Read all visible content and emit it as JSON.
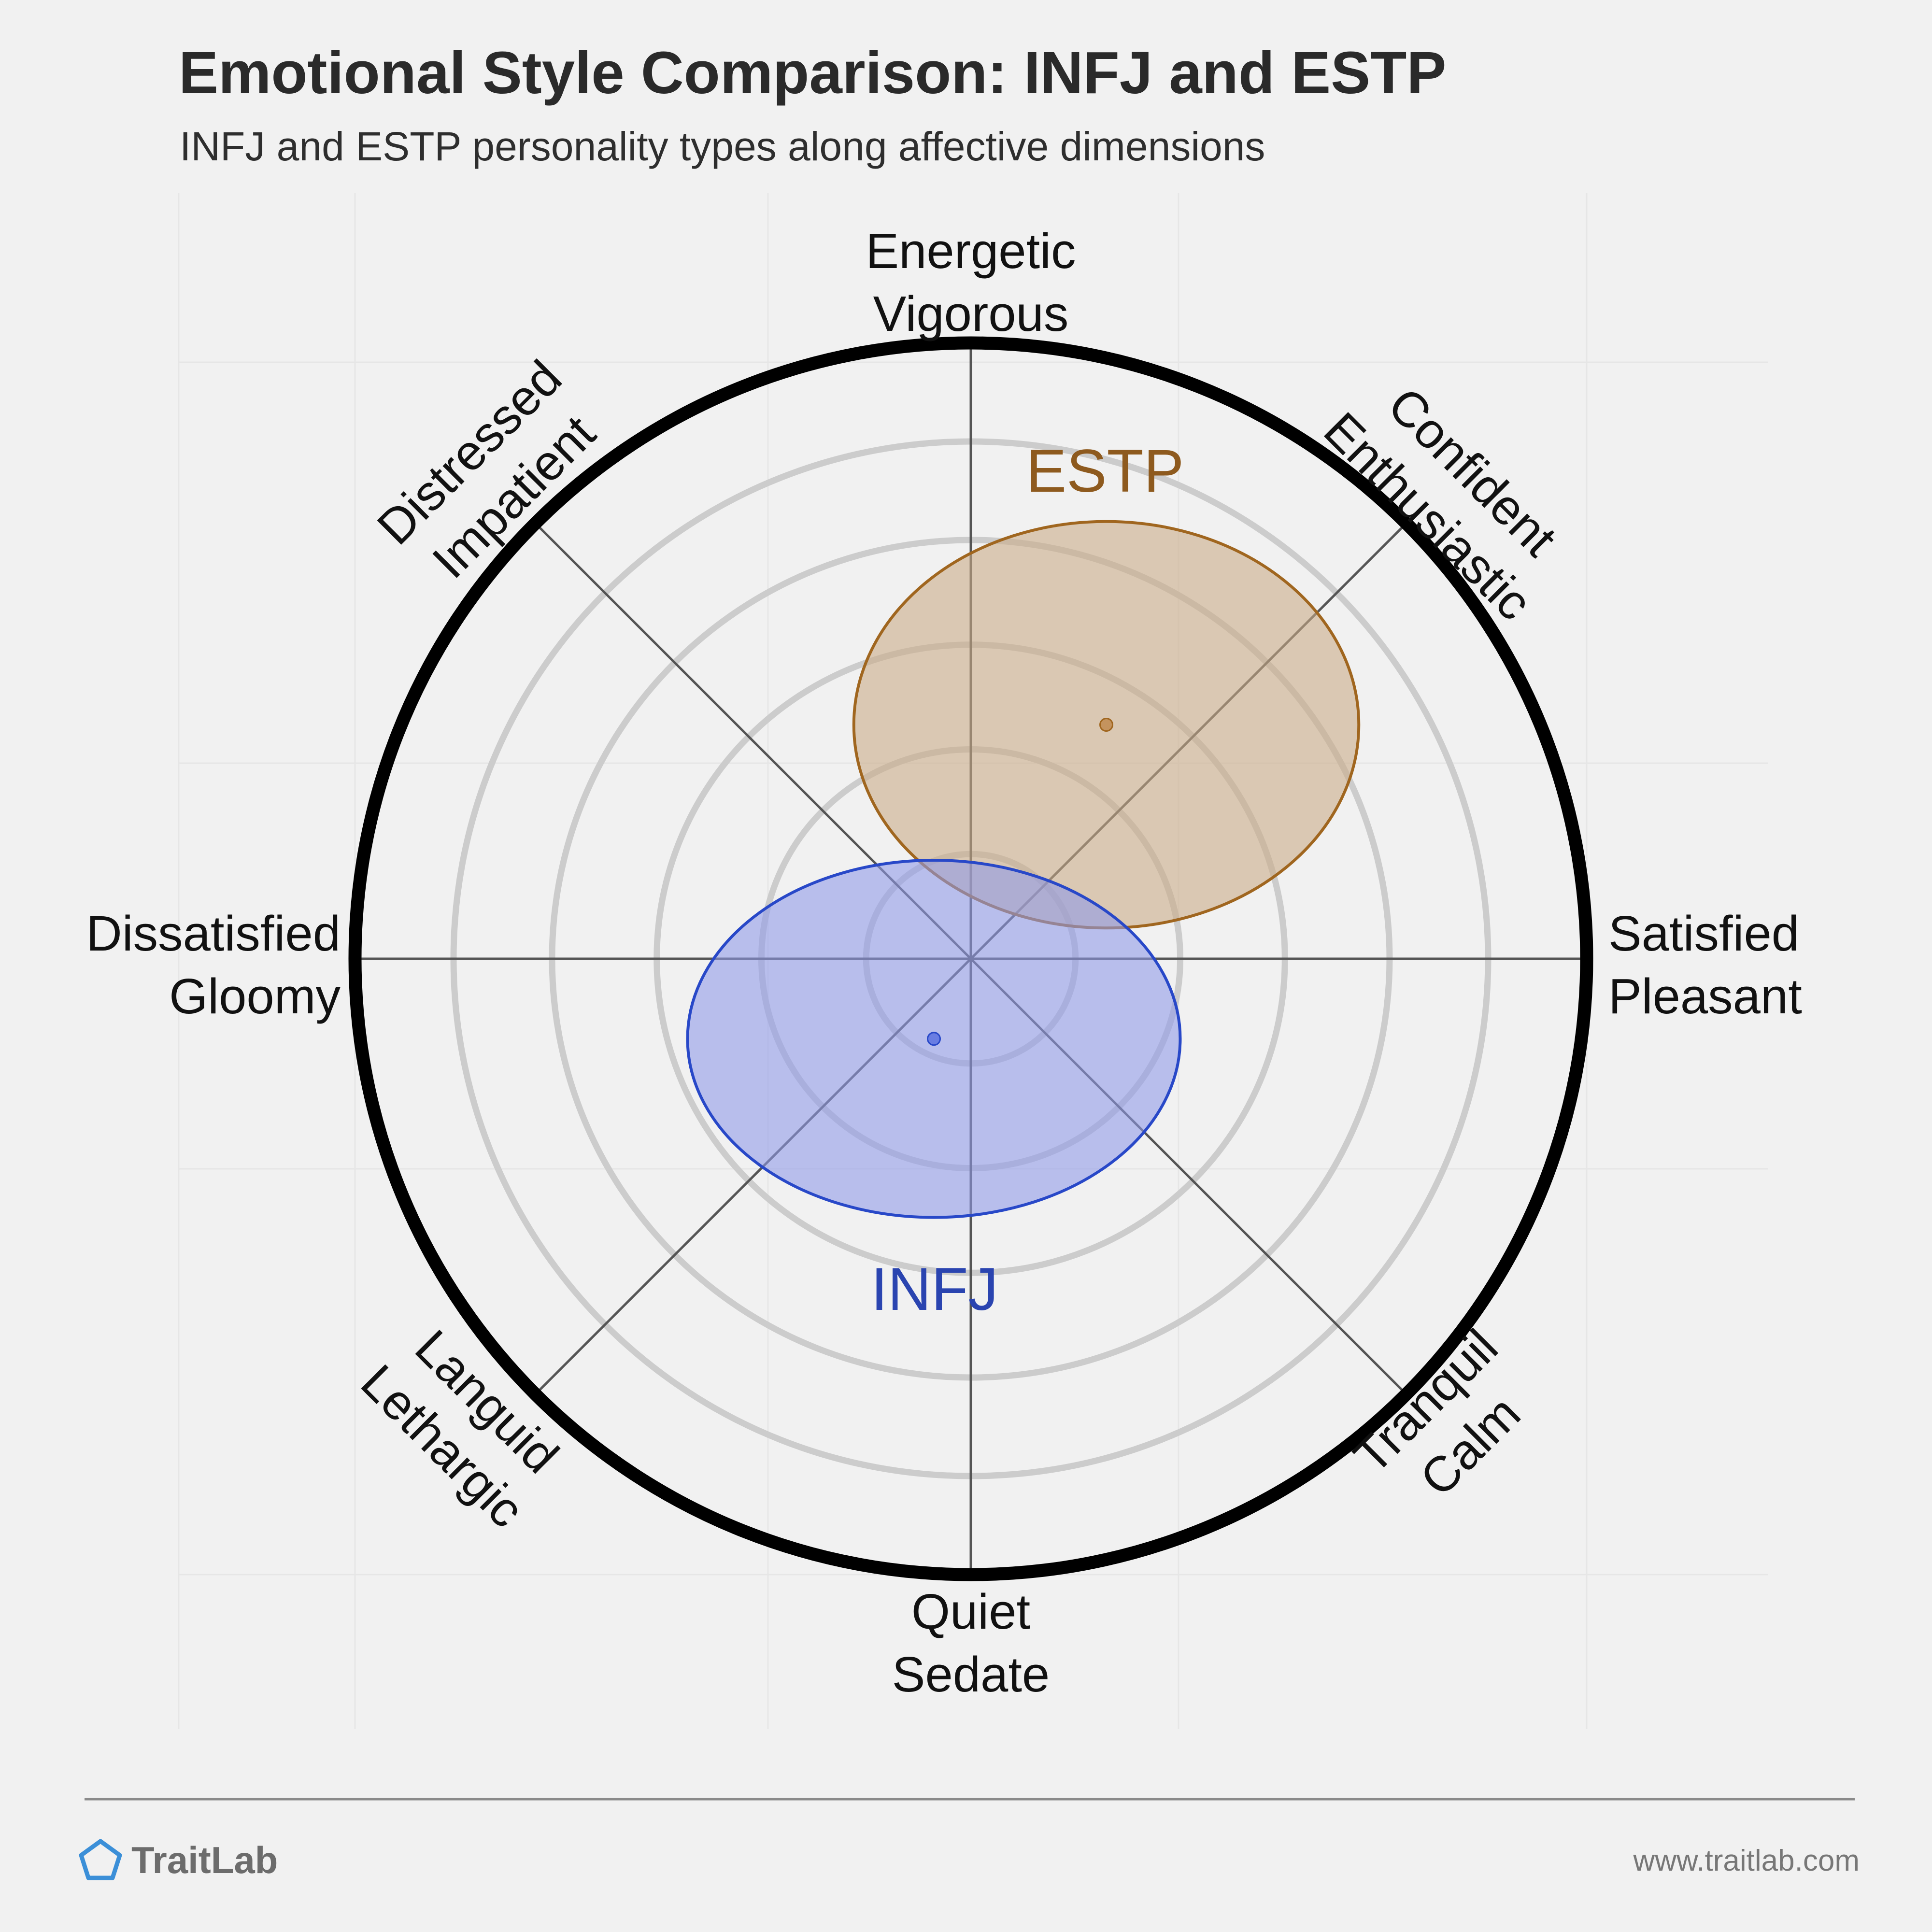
{
  "header": {
    "title": "Emotional Style Comparison: INFJ and ESTP",
    "subtitle": "INFJ and ESTP personality types along affective dimensions"
  },
  "footer": {
    "brand": "TraitLab",
    "site": "www.traitlab.com"
  },
  "colors": {
    "background": "#f1f1f1",
    "ring": "#cccccc",
    "axis": "#555555",
    "outer_ring": "#000000"
  },
  "chart_data": {
    "type": "scatter",
    "coordinate_system": "circular affect space",
    "axis_range": [
      -1,
      1
    ],
    "x_axis": {
      "negative": [
        "Dissatisfied",
        "Gloomy"
      ],
      "positive": [
        "Satisfied",
        "Pleasant"
      ]
    },
    "y_axis": {
      "negative": [
        "Quiet",
        "Sedate"
      ],
      "positive": [
        "Energetic",
        "Vigorous"
      ]
    },
    "diagonals": {
      "upper_right": [
        "Confident",
        "Enthusiastic"
      ],
      "upper_left": [
        "Distressed",
        "Impatient"
      ],
      "lower_left": [
        "Languid",
        "Lethargic"
      ],
      "lower_right": [
        "Tranquil",
        "Calm"
      ]
    },
    "rings": [
      0.17,
      0.34,
      0.51,
      0.68,
      0.84
    ],
    "grid": true,
    "series": [
      {
        "name": "ESTP",
        "x": 0.22,
        "y": 0.38,
        "spread_x": 0.41,
        "spread_y": 0.33,
        "color": "#8e5a1e",
        "fill": "#c9ab86",
        "stroke": "#a0661f",
        "dot": "#c08a4f"
      },
      {
        "name": "INFJ",
        "x": -0.06,
        "y": -0.13,
        "spread_x": 0.4,
        "spread_y": 0.29,
        "color": "#2a44b0",
        "fill": "#8f9ae8",
        "stroke": "#2848c8",
        "dot": "#5b72e0"
      }
    ]
  }
}
